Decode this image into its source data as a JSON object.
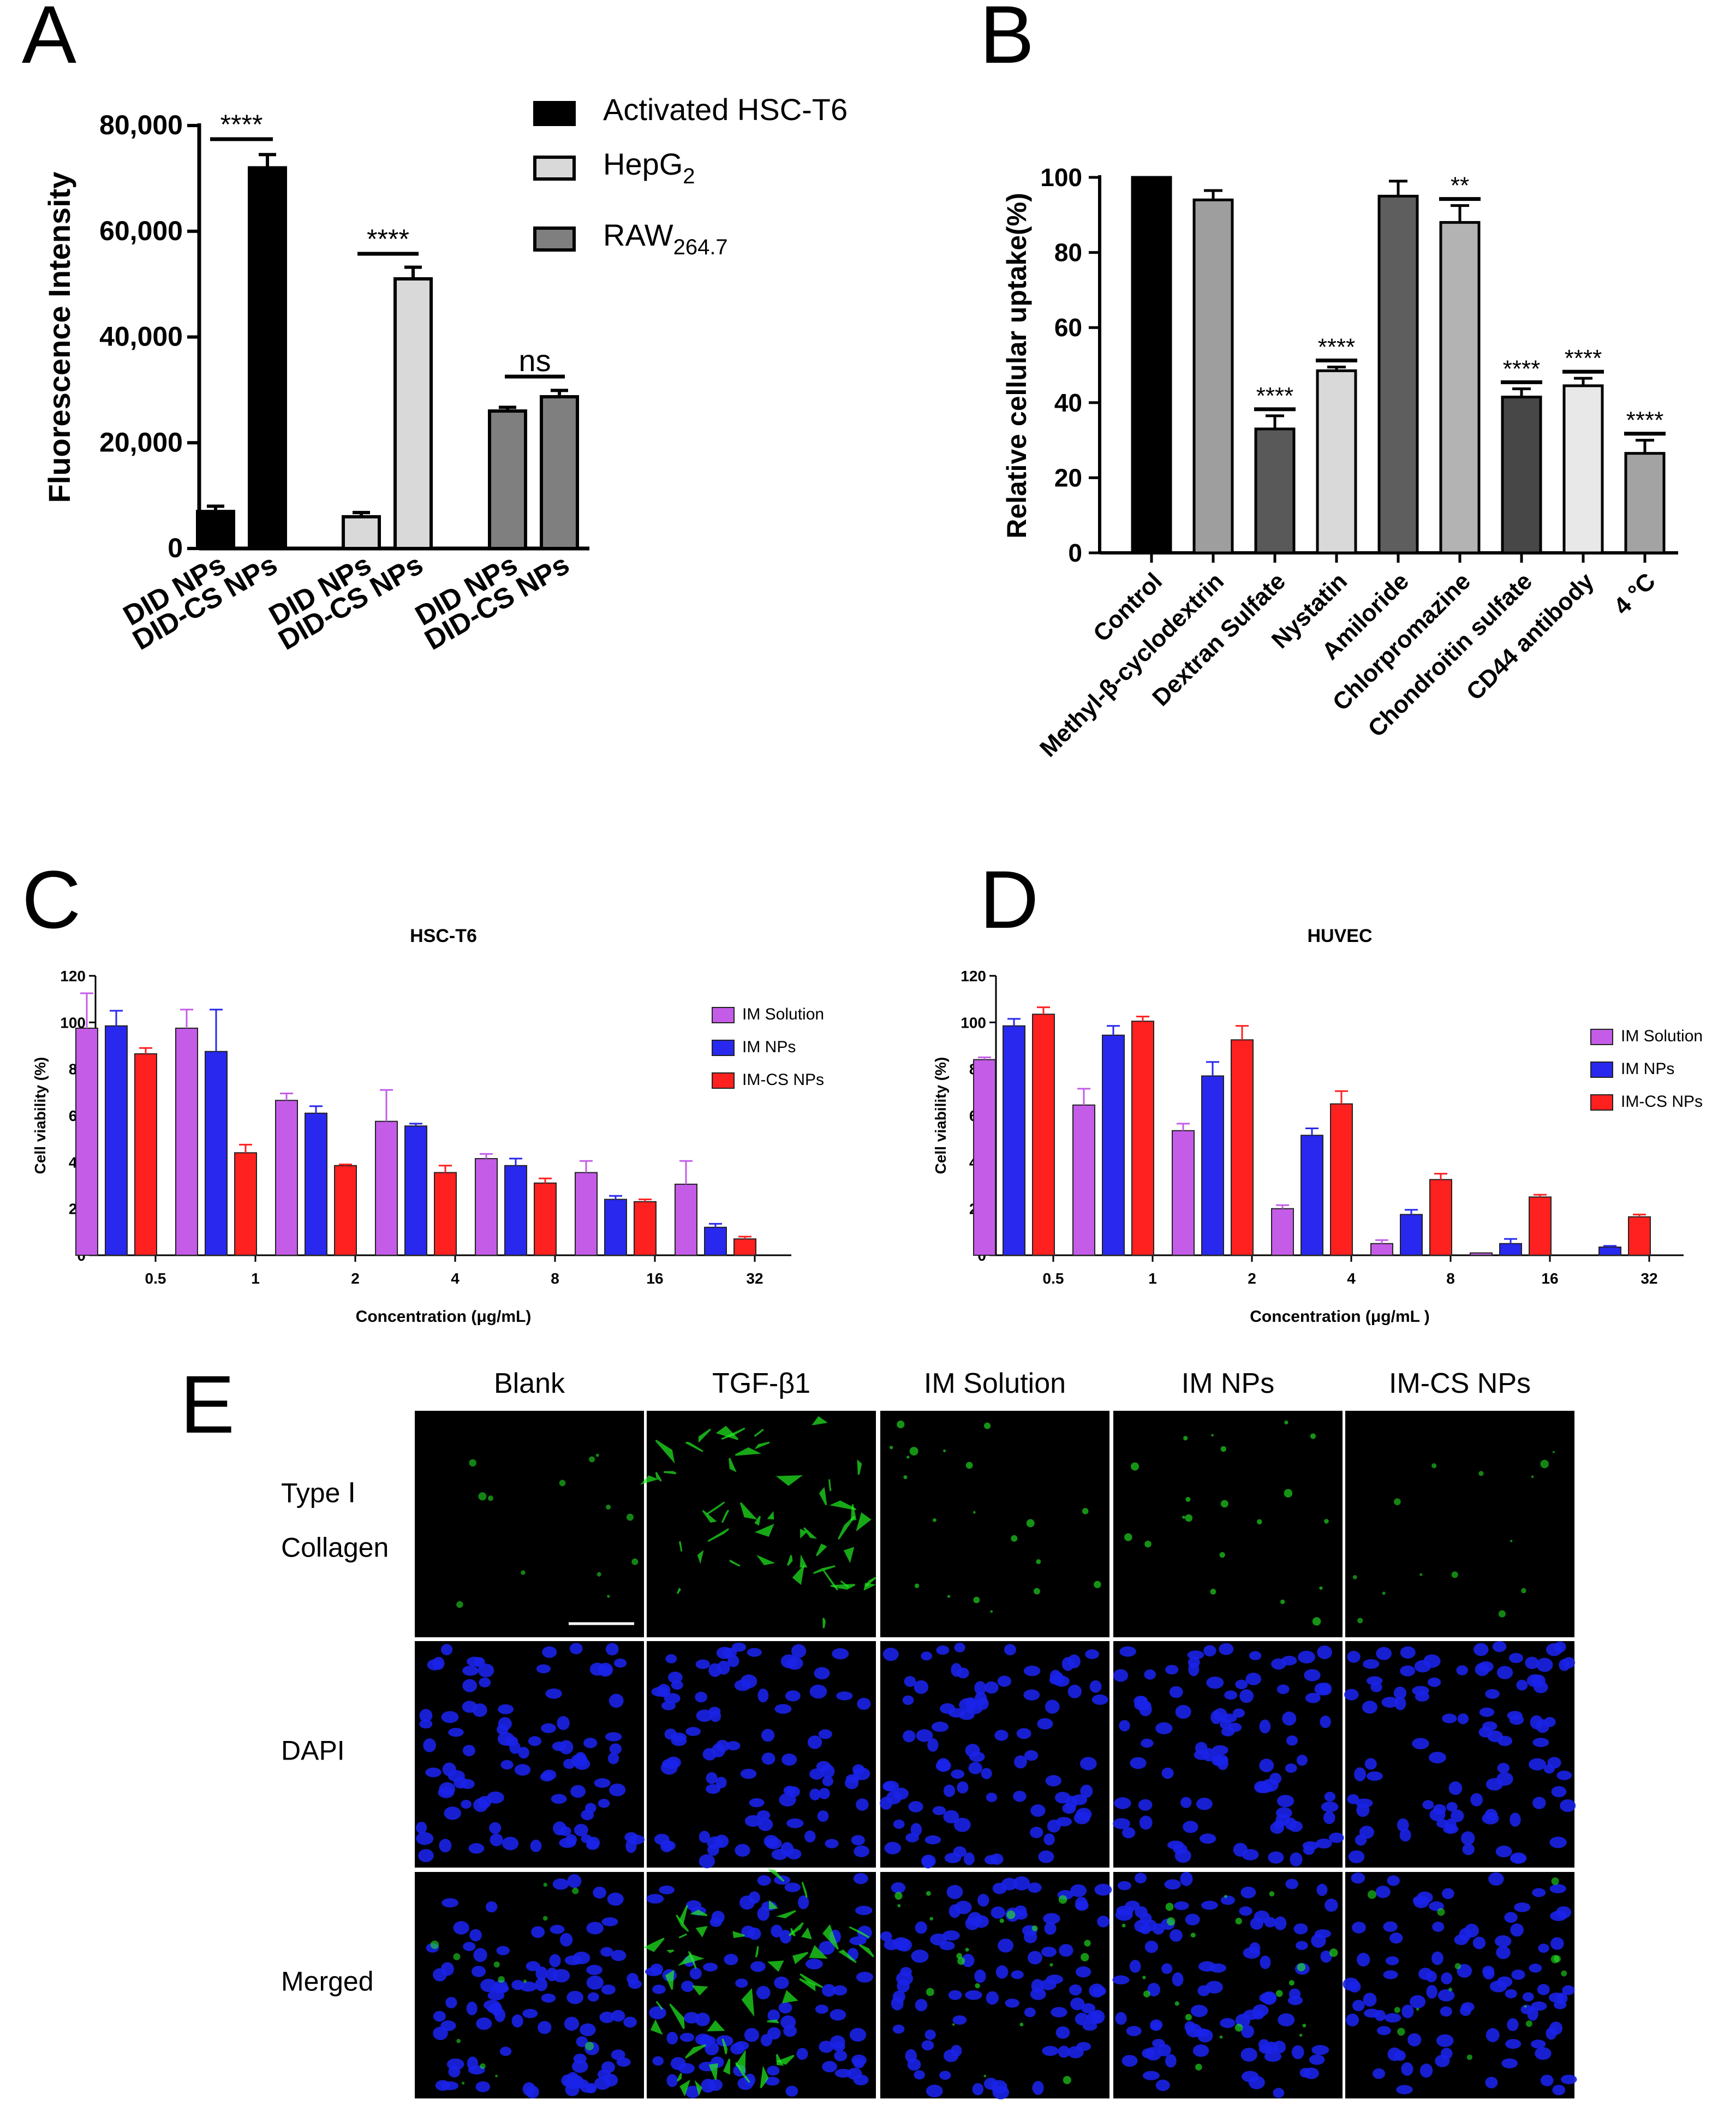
{
  "panels": {
    "A": "A",
    "B": "B",
    "C": "C",
    "D": "D",
    "E": "E"
  },
  "chart_data": [
    {
      "panel": "A",
      "type": "bar",
      "ylabel": "Fluorescence Intensity",
      "xlabel": "",
      "ylim": [
        0,
        80000
      ],
      "yticks": [
        "0",
        "20,000",
        "40,000",
        "60,000",
        "80,000"
      ],
      "categories": [
        "DID NPs",
        "DID-CS NPs",
        "DID NPs",
        "DID-CS NPs",
        "DID NPs",
        "DID-CS NPs"
      ],
      "values": [
        7000,
        72000,
        6000,
        51000,
        26000,
        28700
      ],
      "errors": [
        1000,
        2500,
        800,
        2200,
        700,
        1200
      ],
      "groups": [
        {
          "name": "Activated HSC-T6",
          "color": "#000000",
          "indices": [
            0,
            1
          ]
        },
        {
          "name": "HepG2",
          "color": "#d9d9d9",
          "indices": [
            2,
            3
          ]
        },
        {
          "name": "RAW264.7",
          "color": "#7f7f7f",
          "indices": [
            4,
            5
          ]
        }
      ],
      "legend": {
        "position": "top-right",
        "entries": [
          {
            "label": "Activated HSC-T6",
            "sub": "",
            "color": "#000000"
          },
          {
            "label": "HepG",
            "sub": "2",
            "color": "#d9d9d9"
          },
          {
            "label": "RAW",
            "sub": "264.7",
            "color": "#7f7f7f"
          }
        ]
      },
      "significance": [
        "****",
        "****",
        "ns"
      ]
    },
    {
      "panel": "B",
      "type": "bar",
      "ylabel": "Relative cellular uptake(%)",
      "xlabel": "",
      "ylim": [
        0,
        100
      ],
      "yticks": [
        "0",
        "20",
        "40",
        "60",
        "80",
        "100"
      ],
      "categories": [
        "Control",
        "Methyl-β-cyclodextrin",
        "Dextran Sulfate",
        "Nystatin",
        "Amiloride",
        "Chlorpromazine",
        "Chondroitin sulfate",
        "CD44 antibody",
        "4 °C"
      ],
      "values": [
        100,
        94,
        33,
        48.5,
        95,
        88,
        41.5,
        44.5,
        26.5
      ],
      "errors": [
        0,
        2.5,
        3.5,
        1,
        4,
        4.5,
        2.2,
        2,
        3.5
      ],
      "colors": [
        "#000000",
        "#9e9e9e",
        "#595959",
        "#d9d9d9",
        "#5e5e5e",
        "#b3b3b3",
        "#474747",
        "#e8e8e8",
        "#a3a3a3"
      ],
      "significance": [
        "",
        "",
        "****",
        "****",
        "",
        "**",
        "****",
        "****",
        "****"
      ]
    },
    {
      "panel": "C",
      "type": "bar",
      "title": "HSC-T6",
      "xlabel": "Concentration (μg/mL)",
      "ylabel": "Cell viability (%)",
      "ylim": [
        0,
        120
      ],
      "yticks": [
        "0",
        "20",
        "40",
        "60",
        "80",
        "100",
        "120"
      ],
      "categories": [
        "0.5",
        "1",
        "2",
        "4",
        "8",
        "16",
        "32"
      ],
      "legend": {
        "position": "top-right"
      },
      "series": [
        {
          "name": "IM Solution",
          "color": "#c45ce8",
          "values": [
            97.5,
            97.5,
            66.5,
            57.5,
            41.5,
            35.5,
            30.5
          ],
          "errors": [
            15,
            8,
            3,
            13.5,
            2,
            5,
            10
          ]
        },
        {
          "name": "IM NPs",
          "color": "#2828ee",
          "values": [
            98.5,
            87.5,
            61,
            55.5,
            38.5,
            24,
            12
          ],
          "errors": [
            6.5,
            18,
            3,
            1,
            3,
            1.5,
            1.5
          ]
        },
        {
          "name": "IM-CS NPs",
          "color": "#ff2020",
          "values": [
            86.5,
            44,
            38.5,
            35.5,
            31,
            23,
            7
          ],
          "errors": [
            2.5,
            3.5,
            0.5,
            3,
            2,
            1,
            1
          ]
        }
      ]
    },
    {
      "panel": "D",
      "type": "bar",
      "title": "HUVEC",
      "xlabel": "Concentration (μg/mL )",
      "ylabel": "Cell viability (%)",
      "ylim": [
        0,
        120
      ],
      "yticks": [
        "0",
        "20",
        "40",
        "60",
        "80",
        "100",
        "120"
      ],
      "categories": [
        "0.5",
        "1",
        "2",
        "4",
        "8",
        "16",
        "32"
      ],
      "legend": {
        "position": "top-right"
      },
      "series": [
        {
          "name": "IM Solution",
          "color": "#c45ce8",
          "values": [
            84,
            64.5,
            53.5,
            20,
            5,
            1,
            0
          ],
          "errors": [
            1,
            7,
            3,
            1.5,
            1.5,
            0,
            0
          ]
        },
        {
          "name": "IM NPs",
          "color": "#2828ee",
          "values": [
            98.5,
            94.5,
            77,
            51.5,
            17.5,
            5,
            3.5
          ],
          "errors": [
            3,
            4,
            6,
            3,
            2,
            2,
            0.5
          ]
        },
        {
          "name": "IM-CS NPs",
          "color": "#ff2020",
          "values": [
            103.5,
            100.5,
            92.5,
            65,
            32.5,
            25,
            16.5
          ],
          "errors": [
            3,
            2,
            6,
            5.5,
            2.5,
            1,
            1
          ]
        }
      ]
    }
  ],
  "micrograph": {
    "columns": [
      "Blank",
      "TGF-β1",
      "IM Solution",
      "IM NPs",
      "IM-CS NPs"
    ],
    "rows": [
      {
        "label_lines": [
          "Type Ⅰ",
          "Collagen"
        ],
        "kind": "collagen"
      },
      {
        "label_lines": [
          "DAPI"
        ],
        "kind": "dapi"
      },
      {
        "label_lines": [
          "Merged"
        ],
        "kind": "merged"
      }
    ],
    "collagen_color": "#22ee22",
    "dapi_color": "#1a22e8",
    "green_signal": [
      0.12,
      1.0,
      0.3,
      0.3,
      0.15
    ]
  }
}
